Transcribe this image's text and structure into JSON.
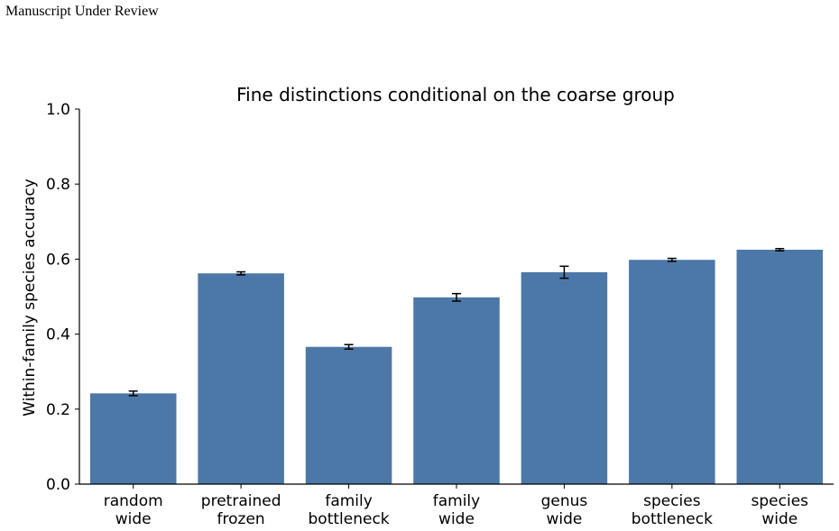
{
  "header": {
    "text": "Manuscript Under Review"
  },
  "chart_data": {
    "type": "bar",
    "title": "Fine distinctions conditional on the coarse group",
    "xlabel": "",
    "ylabel": "Within-family species accuracy",
    "ylim": [
      0,
      1.0
    ],
    "yticks": [
      "0.0",
      "0.2",
      "0.4",
      "0.6",
      "0.8",
      "1.0"
    ],
    "categories": [
      [
        "random",
        "wide"
      ],
      [
        "pretrained",
        "frozen"
      ],
      [
        "family",
        "bottleneck"
      ],
      [
        "family",
        "wide"
      ],
      [
        "genus",
        "wide"
      ],
      [
        "species",
        "bottleneck"
      ],
      [
        "species",
        "wide"
      ]
    ],
    "values": [
      0.242,
      0.562,
      0.366,
      0.498,
      0.565,
      0.598,
      0.625
    ],
    "errors": [
      0.006,
      0.004,
      0.006,
      0.01,
      0.016,
      0.004,
      0.003
    ],
    "bar_color": "#4c78a8",
    "grid": false,
    "legend": "none"
  }
}
